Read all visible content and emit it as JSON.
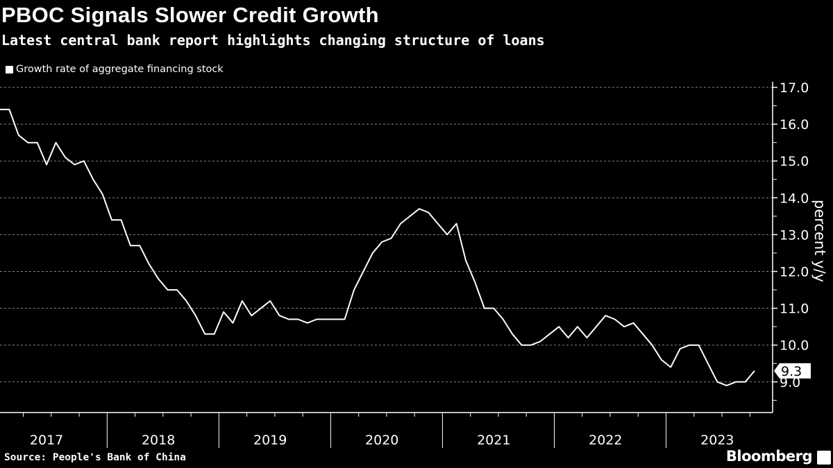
{
  "chart_data": {
    "type": "line",
    "title": "PBOC Signals Slower Credit Growth",
    "subtitle": "Latest central bank report highlights changing structure of loans",
    "ylabel": "percent y/y",
    "xlabel": "",
    "x_start": "2017-01",
    "x_end": "2023-10",
    "x_frequency": "monthly",
    "xlim": [
      "2017-01",
      "2023-12"
    ],
    "ylim": [
      8.2,
      17.2
    ],
    "y_ticks": [
      "9.0",
      "10.0",
      "11.0",
      "12.0",
      "13.0",
      "14.0",
      "15.0",
      "16.0",
      "17.0"
    ],
    "x_tick_labels": [
      "2017",
      "2018",
      "2019",
      "2020",
      "2021",
      "2022",
      "2023"
    ],
    "grid": "horizontal dashed",
    "y_axis_side": "right",
    "legend": "top-left",
    "series": [
      {
        "name": "Growth rate of aggregate financing stock",
        "color": "#ffffff",
        "values": [
          16.4,
          16.4,
          15.7,
          15.5,
          15.5,
          14.9,
          15.5,
          15.1,
          14.9,
          15.0,
          14.5,
          14.1,
          13.4,
          13.4,
          12.7,
          12.7,
          12.2,
          11.8,
          11.5,
          11.5,
          11.2,
          10.8,
          10.3,
          10.3,
          10.9,
          10.6,
          11.2,
          10.8,
          11.0,
          11.2,
          10.8,
          10.7,
          10.7,
          10.6,
          10.7,
          10.7,
          10.7,
          10.7,
          11.5,
          12.0,
          12.5,
          12.8,
          12.9,
          13.3,
          13.5,
          13.7,
          13.6,
          13.3,
          13.0,
          13.3,
          12.3,
          11.7,
          11.0,
          11.0,
          10.7,
          10.3,
          10.0,
          10.0,
          10.1,
          10.3,
          10.5,
          10.2,
          10.5,
          10.2,
          10.5,
          10.8,
          10.7,
          10.5,
          10.6,
          10.3,
          10.0,
          9.6,
          9.4,
          9.9,
          10.0,
          10.0,
          9.5,
          9.0,
          8.9,
          9.0,
          9.0,
          9.3
        ]
      }
    ],
    "last_value_label": "9.3"
  },
  "source": "Source: People's Bank of China",
  "brand": "Bloomberg",
  "colors": {
    "background": "#000000",
    "line": "#ffffff",
    "grid": "#8a8a8a"
  }
}
